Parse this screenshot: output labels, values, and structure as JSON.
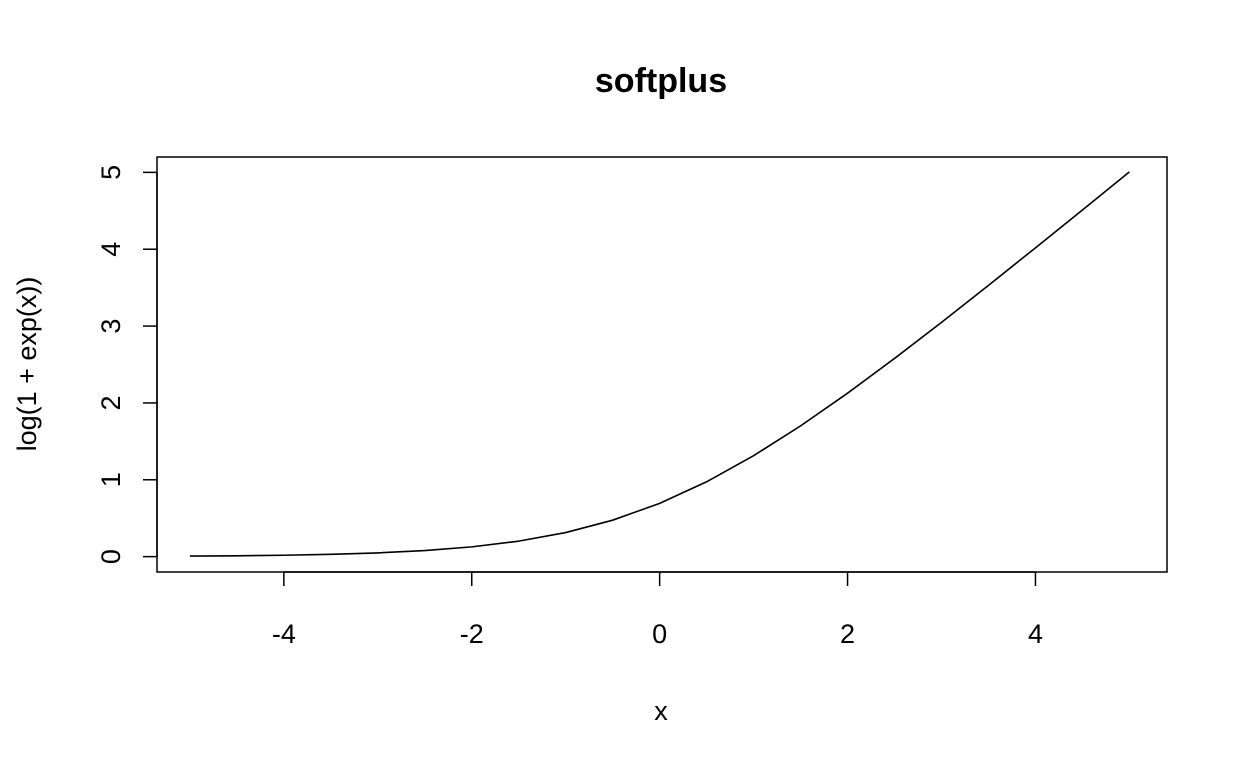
{
  "chart_data": {
    "type": "line",
    "title": "softplus",
    "xlabel": "x",
    "ylabel": "log(1 + exp(x))",
    "xlim": [
      -5.35,
      5.4
    ],
    "ylim": [
      -0.2,
      5.2
    ],
    "x_ticks": [
      -4,
      -2,
      0,
      2,
      4
    ],
    "y_ticks": [
      0,
      1,
      2,
      3,
      4,
      5
    ],
    "x_tick_labels": [
      "-4",
      "-2",
      "0",
      "2",
      "4"
    ],
    "y_tick_labels": [
      "0",
      "1",
      "2",
      "3",
      "4",
      "5"
    ],
    "grid": false,
    "legend": "none",
    "line_color": "#000000",
    "series": [
      {
        "x": [
          -5,
          -4.5,
          -4,
          -3.5,
          -3,
          -2.5,
          -2,
          -1.5,
          -1,
          -0.5,
          0,
          0.5,
          1,
          1.5,
          2,
          2.5,
          3,
          3.5,
          4,
          4.5,
          5
        ],
        "values": [
          0.0067,
          0.011,
          0.0181,
          0.0298,
          0.0486,
          0.0789,
          0.1269,
          0.2014,
          0.3133,
          0.4741,
          0.6931,
          0.9741,
          1.3133,
          1.7014,
          2.1269,
          2.5789,
          3.0486,
          3.5298,
          4.0181,
          4.511,
          5.0067
        ]
      }
    ]
  }
}
